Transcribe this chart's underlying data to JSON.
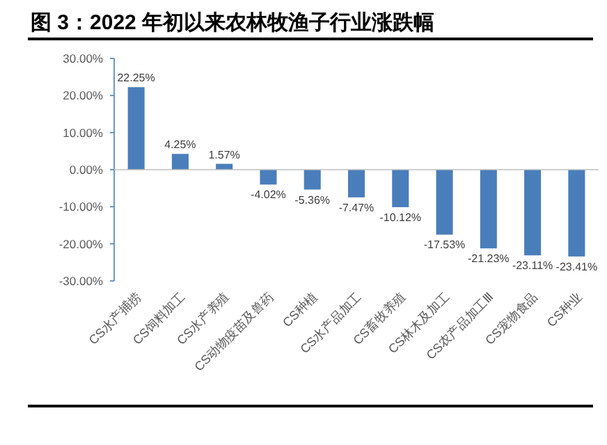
{
  "chart_data": {
    "type": "bar",
    "title": "图 3：2022 年初以来农林牧渔子行业涨跌幅",
    "categories": [
      "CS水产捕捞",
      "CS饲料加工",
      "CS水产养殖",
      "CS动物疫苗及兽药",
      "CS种植",
      "CS水产品加工",
      "CS畜牧养殖",
      "CS林木及加工",
      "CS农产品加工Ⅲ",
      "CS宠物食品",
      "CS种业"
    ],
    "values": [
      22.25,
      4.25,
      1.57,
      -4.02,
      -5.36,
      -7.47,
      -10.12,
      -17.53,
      -21.23,
      -23.11,
      -23.41
    ],
    "value_labels": [
      "22.25%",
      "4.25%",
      "1.57%",
      "-4.02%",
      "-5.36%",
      "-7.47%",
      "-10.12%",
      "-17.53%",
      "-21.23%",
      "-23.11%",
      "-23.41%"
    ],
    "color": "#4a7ebb",
    "ylim": [
      -30,
      30
    ],
    "yticks": [
      {
        "value": 30,
        "label": "30.00%"
      },
      {
        "value": 20,
        "label": "20.00%"
      },
      {
        "value": 10,
        "label": "10.00%"
      },
      {
        "value": 0,
        "label": "0.00%"
      },
      {
        "value": -10,
        "label": "-10.00%"
      },
      {
        "value": -20,
        "label": "-20.00%"
      },
      {
        "value": -30,
        "label": "-30.00%"
      }
    ],
    "relative": false
  }
}
